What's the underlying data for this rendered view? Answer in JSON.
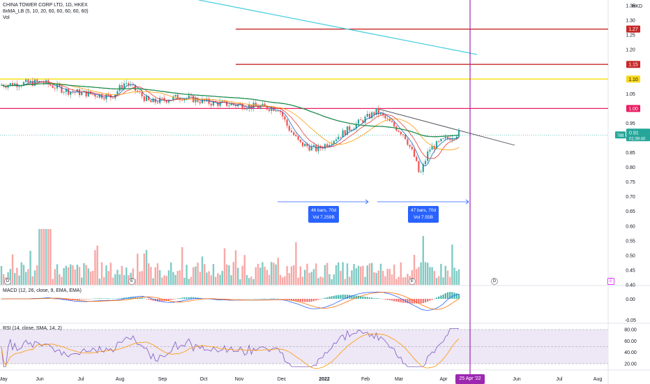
{
  "header": {
    "symbol_line": "CHINA TOWER CORP LTD, 1D, HKEX",
    "ma_line": "8xMA_LB (5, 10, 20, 60, 60, 60, 60, 60)",
    "vol_line": "Vol"
  },
  "price_axis": {
    "currency": "HKD",
    "ticks": [
      "1.35",
      "1.30",
      "1.25",
      "1.20",
      "1.15",
      "1.10",
      "1.05",
      "1.00",
      "0.95",
      "0.90",
      "0.85",
      "0.80",
      "0.75",
      "0.70",
      "0.65",
      "0.60",
      "0.55",
      "0.50",
      "0.45",
      "0.40"
    ],
    "tags": [
      {
        "label": "1.27",
        "color": "#c62828"
      },
      {
        "label": "1.15",
        "color": "#c62828"
      },
      {
        "label": "1.10",
        "color": "#f9d71c",
        "text": "#131722"
      },
      {
        "label": "1.00",
        "color": "#e91e63"
      }
    ],
    "last_price": "0.91",
    "last_volume_tag": "788",
    "countdown": "01:39:40"
  },
  "measures": [
    {
      "line1": "46 bars, 70d",
      "line2": "Vol 7.259B"
    },
    {
      "line1": "47 bars, 70d",
      "line2": "Vol 7.55B"
    }
  ],
  "macd": {
    "label": "MACD (12, 26, close, 9, EMA, EMA)",
    "ticks": [
      "0.00",
      "-0.05"
    ]
  },
  "rsi": {
    "label": "RSI (14, close, SMA, 14, 2)",
    "ticks": [
      "80.00",
      "60.00",
      "40.00",
      "20.00"
    ]
  },
  "time_axis": {
    "labels": [
      "May",
      "Jun",
      "Jul",
      "Aug",
      "Sep",
      "Oct",
      "Nov",
      "Dec",
      "2022",
      "Feb",
      "Mar",
      "Apr",
      "Jun",
      "Jul",
      "Aug"
    ],
    "cursor_date": "25 Apr '22"
  },
  "event_markers": {
    "dividend": "D",
    "earnings": "E"
  },
  "colors": {
    "up": "#26a69a",
    "down": "#ef5350",
    "ma_green": "#1e8c4e",
    "ma_orange": "#ff9800",
    "ma_red": "#e53935",
    "ma_blue": "#1565c0",
    "cursor": "#9c27b0",
    "rsi_line": "#7e57c2",
    "rsi_band": "#ede7f6"
  }
}
